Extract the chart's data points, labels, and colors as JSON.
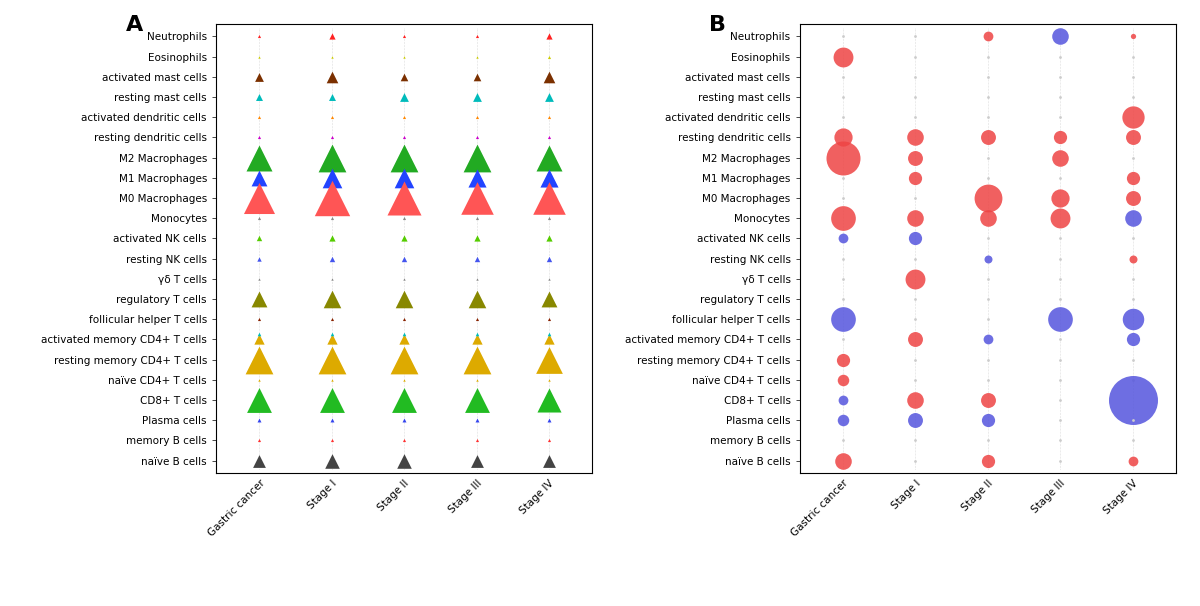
{
  "cell_types": [
    "Neutrophils",
    "Eosinophils",
    "activated mast cells",
    "resting mast cells",
    "activated dendritic cells",
    "resting dendritic cells",
    "M2 Macrophages",
    "M1 Macrophages",
    "M0 Macrophages",
    "Monocytes",
    "activated NK cells",
    "resting NK cells",
    "γδ T cells",
    "regulatory T cells",
    "follicular helper T cells",
    "activated memory CD4+ T cells",
    "resting memory CD4+ T cells",
    "naïve CD4+ T cells",
    "CD8+ T cells",
    "Plasma cells",
    "memory B cells",
    "naïve B cells"
  ],
  "x_labels": [
    "Gastric cancer",
    "Stage I",
    "Stage II",
    "Stage III",
    "Stage IV"
  ],
  "panel_A_label": "A",
  "panel_B_label": "B",
  "tri_colors": [
    "#FF2222",
    "#CCCC00",
    "#7B3000",
    "#00BBBB",
    "#FF8800",
    "#CC00CC",
    "#22AA22",
    "#2244FF",
    "#FF5555",
    "#888888",
    "#55CC00",
    "#4455EE",
    "#888888",
    "#888800",
    "#882200",
    "#00BBBB",
    "#DDAA00",
    "#DDAA00",
    "#22BB22",
    "#3344EE",
    "#FF3333",
    "#444444"
  ],
  "tri_marker_sizes": [
    [
      5,
      20,
      5,
      5,
      20
    ],
    [
      3,
      3,
      3,
      3,
      5
    ],
    [
      40,
      70,
      30,
      30,
      70
    ],
    [
      25,
      25,
      40,
      40,
      40
    ],
    [
      5,
      5,
      5,
      5,
      5
    ],
    [
      5,
      5,
      5,
      5,
      5
    ],
    [
      350,
      400,
      400,
      400,
      350
    ],
    [
      130,
      200,
      200,
      170,
      170
    ],
    [
      500,
      650,
      600,
      550,
      550
    ],
    [
      5,
      5,
      5,
      5,
      5
    ],
    [
      15,
      20,
      20,
      20,
      20
    ],
    [
      10,
      15,
      15,
      15,
      15
    ],
    [
      3,
      3,
      3,
      3,
      3
    ],
    [
      130,
      160,
      160,
      160,
      130
    ],
    [
      5,
      5,
      5,
      5,
      5
    ],
    [
      55,
      55,
      55,
      55,
      55
    ],
    [
      400,
      400,
      400,
      400,
      370
    ],
    [
      3,
      3,
      3,
      3,
      3
    ],
    [
      320,
      320,
      320,
      320,
      300
    ],
    [
      8,
      8,
      8,
      8,
      8
    ],
    [
      5,
      5,
      5,
      5,
      5
    ],
    [
      85,
      110,
      110,
      85,
      85
    ]
  ],
  "dot_color_B": [
    [
      "tiny",
      "tiny",
      "red",
      "blue",
      "red"
    ],
    [
      "red",
      "tiny",
      "tiny",
      "tiny",
      "tiny"
    ],
    [
      "tiny",
      "tiny",
      "tiny",
      "tiny",
      "tiny"
    ],
    [
      "tiny",
      "tiny",
      "tiny",
      "tiny",
      "tiny"
    ],
    [
      "tiny",
      "tiny",
      "tiny",
      "tiny",
      "red"
    ],
    [
      "red",
      "red",
      "red",
      "red",
      "red"
    ],
    [
      "red",
      "red",
      "tiny",
      "red",
      "tiny"
    ],
    [
      "tiny",
      "red",
      "tiny",
      "tiny",
      "red"
    ],
    [
      "tiny",
      "tiny",
      "red",
      "red",
      "red"
    ],
    [
      "red",
      "red",
      "red",
      "red",
      "blue"
    ],
    [
      "blue",
      "blue",
      "tiny",
      "tiny",
      "tiny"
    ],
    [
      "tiny",
      "tiny",
      "blue",
      "tiny",
      "red"
    ],
    [
      "tiny",
      "red",
      "tiny",
      "tiny",
      "tiny"
    ],
    [
      "tiny",
      "tiny",
      "tiny",
      "tiny",
      "tiny"
    ],
    [
      "blue",
      "tiny",
      "tiny",
      "blue",
      "blue"
    ],
    [
      "tiny",
      "red",
      "blue",
      "tiny",
      "blue"
    ],
    [
      "red",
      "tiny",
      "tiny",
      "tiny",
      "tiny"
    ],
    [
      "red",
      "tiny",
      "tiny",
      "tiny",
      "tiny"
    ],
    [
      "blue",
      "red",
      "red",
      "tiny",
      "blue"
    ],
    [
      "blue",
      "blue",
      "blue",
      "tiny",
      "tiny"
    ],
    [
      "tiny",
      "tiny",
      "tiny",
      "tiny",
      "tiny"
    ],
    [
      "red",
      "tiny",
      "red",
      "tiny",
      "red"
    ]
  ],
  "dot_size_B": [
    [
      2,
      2,
      10,
      18,
      5
    ],
    [
      22,
      2,
      2,
      2,
      2
    ],
    [
      2,
      2,
      2,
      2,
      2
    ],
    [
      2,
      2,
      2,
      2,
      2
    ],
    [
      2,
      2,
      2,
      2,
      25
    ],
    [
      20,
      18,
      16,
      14,
      16
    ],
    [
      40,
      16,
      2,
      18,
      2
    ],
    [
      2,
      14,
      2,
      2,
      14
    ],
    [
      2,
      2,
      32,
      20,
      16
    ],
    [
      28,
      18,
      18,
      22,
      18
    ],
    [
      10,
      14,
      2,
      2,
      2
    ],
    [
      2,
      2,
      8,
      2,
      8
    ],
    [
      2,
      22,
      2,
      2,
      2
    ],
    [
      2,
      2,
      2,
      2,
      2
    ],
    [
      28,
      2,
      2,
      28,
      24
    ],
    [
      2,
      16,
      10,
      2,
      14
    ],
    [
      14,
      2,
      2,
      2,
      2
    ],
    [
      12,
      2,
      2,
      2,
      2
    ],
    [
      10,
      18,
      16,
      2,
      60
    ],
    [
      12,
      16,
      14,
      2,
      2
    ],
    [
      2,
      2,
      2,
      2,
      2
    ],
    [
      18,
      2,
      14,
      2,
      10
    ]
  ]
}
